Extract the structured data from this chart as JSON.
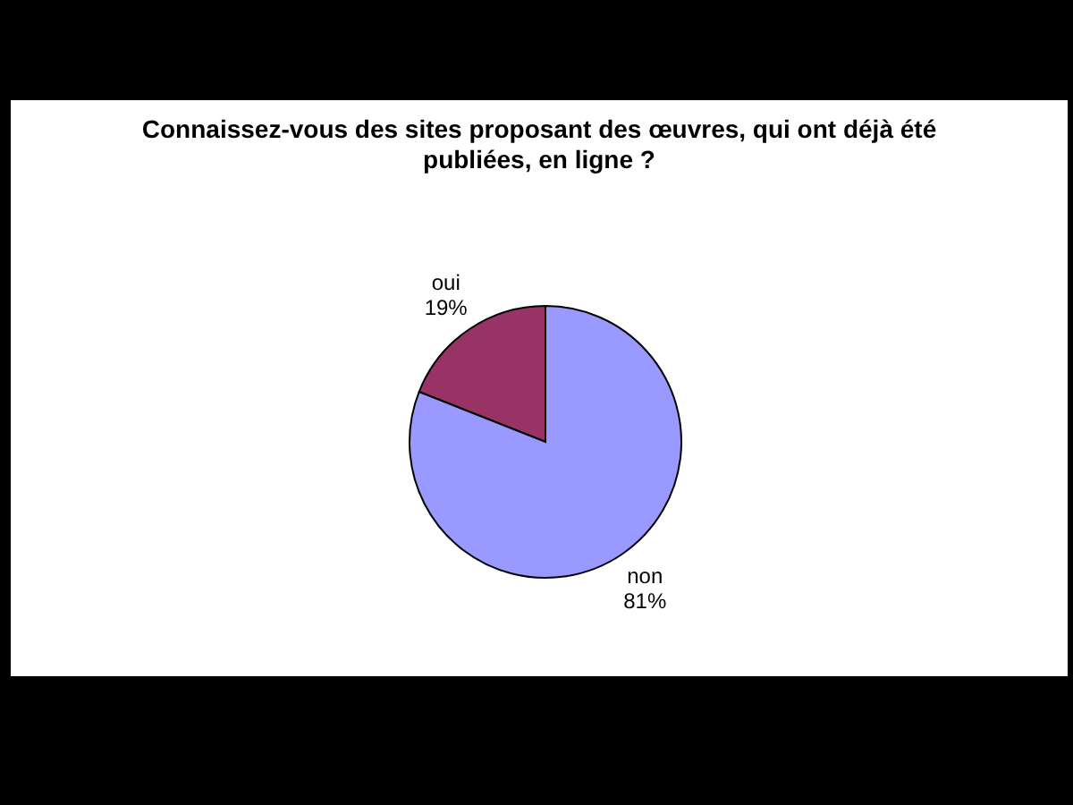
{
  "chart_data": {
    "type": "pie",
    "title": "Connaissez-vous des sites proposant des œuvres, qui ont déjà été publiées, en ligne ?",
    "categories": [
      "oui",
      "non"
    ],
    "values": [
      19,
      81
    ],
    "colors": [
      "#993366",
      "#9999ff"
    ],
    "value_labels": [
      "19%",
      "81%"
    ]
  }
}
